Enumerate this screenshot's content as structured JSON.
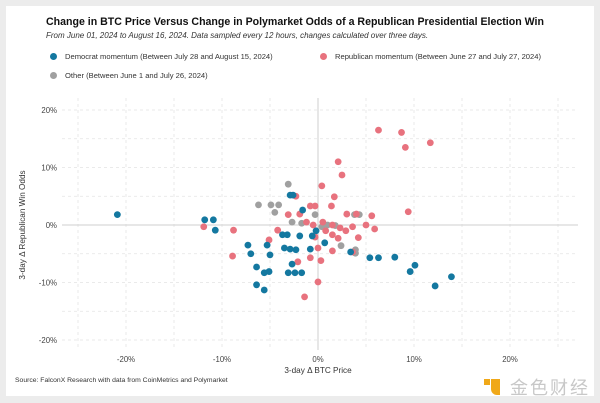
{
  "chart_data": {
    "type": "scatter",
    "title": "Change in BTC Price Versus Change in Polymarket Odds of a Republican Presidential Election Win",
    "subtitle": "From June 01, 2024 to August 16, 2024. Data sampled every 12 hours, changes calculated over three days.",
    "xlabel": "3-day Δ BTC Price",
    "ylabel": "3-day Δ Republican Win Odds",
    "xlim": [
      -28,
      28
    ],
    "ylim": [
      -22,
      22
    ],
    "xticks": [
      -20,
      -10,
      0,
      10,
      20
    ],
    "yticks": [
      -20,
      -10,
      0,
      10,
      20
    ],
    "xtick_labels": [
      "-20%",
      "-10%",
      "0%",
      "10%",
      "20%"
    ],
    "ytick_labels": [
      "-20%",
      "-10%",
      "0%",
      "10%",
      "20%"
    ],
    "grid": true,
    "legend_position": "top",
    "source": "Source: FalconX Research with data from CoinMetrics and Polymarket",
    "series": [
      {
        "name": "Democrat momentum (Between July 28 and August 15, 2024)",
        "color": "#1478a0",
        "points": [
          [
            -20.9,
            1.8
          ],
          [
            -11.8,
            0.9
          ],
          [
            -10.9,
            0.9
          ],
          [
            -10.7,
            -0.9
          ],
          [
            -7.3,
            -3.5
          ],
          [
            -7.0,
            -5.0
          ],
          [
            -5.3,
            -3.5
          ],
          [
            -5.0,
            -5.2
          ],
          [
            -6.4,
            -10.4
          ],
          [
            -5.6,
            -11.3
          ],
          [
            -3.7,
            -1.7
          ],
          [
            -3.2,
            -1.7
          ],
          [
            -3.5,
            -4.0
          ],
          [
            -2.9,
            -4.2
          ],
          [
            -2.3,
            -4.3
          ],
          [
            -6.4,
            -7.3
          ],
          [
            -5.6,
            -8.3
          ],
          [
            -5.1,
            -8.1
          ],
          [
            -2.7,
            -6.8
          ],
          [
            -3.1,
            -8.3
          ],
          [
            -2.4,
            -8.3
          ],
          [
            -1.7,
            -8.3
          ],
          [
            -2.9,
            5.2
          ],
          [
            -2.6,
            5.2
          ],
          [
            -1.6,
            2.6
          ],
          [
            -0.8,
            -4.2
          ],
          [
            -1.9,
            -1.9
          ],
          [
            -0.6,
            -1.9
          ],
          [
            -0.2,
            -1.0
          ],
          [
            0.7,
            -3.1
          ],
          [
            3.4,
            -4.7
          ],
          [
            5.4,
            -5.7
          ],
          [
            6.3,
            -5.7
          ],
          [
            8.0,
            -5.6
          ],
          [
            9.6,
            -8.1
          ],
          [
            10.1,
            -7.0
          ],
          [
            12.2,
            -10.6
          ],
          [
            13.9,
            -9.0
          ]
        ]
      },
      {
        "name": "Republican momentum (Between June 27 and July 27, 2024)",
        "color": "#e8727e",
        "points": [
          [
            -11.9,
            -0.3
          ],
          [
            -8.8,
            -0.9
          ],
          [
            -8.9,
            -5.4
          ],
          [
            -5.1,
            -2.6
          ],
          [
            -4.2,
            -0.9
          ],
          [
            -2.1,
            -6.4
          ],
          [
            -0.8,
            -5.7
          ],
          [
            0.0,
            -4.0
          ],
          [
            -1.4,
            -12.5
          ],
          [
            0.0,
            -9.9
          ],
          [
            2.1,
            11.0
          ],
          [
            2.5,
            8.7
          ],
          [
            0.4,
            6.8
          ],
          [
            1.7,
            4.9
          ],
          [
            1.4,
            3.3
          ],
          [
            -0.3,
            3.3
          ],
          [
            -0.8,
            3.3
          ],
          [
            -2.3,
            5.0
          ],
          [
            -3.1,
            1.8
          ],
          [
            -1.2,
            0.5
          ],
          [
            -0.5,
            0.0
          ],
          [
            0.5,
            0.5
          ],
          [
            1.5,
            0.0
          ],
          [
            2.3,
            -0.5
          ],
          [
            3.0,
            1.9
          ],
          [
            0.8,
            -1.0
          ],
          [
            1.5,
            -1.7
          ],
          [
            2.1,
            -2.3
          ],
          [
            2.9,
            -1.0
          ],
          [
            3.6,
            -0.3
          ],
          [
            4.0,
            1.9
          ],
          [
            5.0,
            0.0
          ],
          [
            5.9,
            -0.7
          ],
          [
            1.5,
            -4.5
          ],
          [
            3.6,
            -4.7
          ],
          [
            0.3,
            -6.2
          ],
          [
            6.3,
            16.5
          ],
          [
            8.7,
            16.1
          ],
          [
            9.1,
            13.5
          ],
          [
            11.7,
            14.3
          ],
          [
            5.6,
            1.6
          ],
          [
            9.4,
            2.3
          ],
          [
            4.2,
            -2.2
          ],
          [
            -0.3,
            -2.1
          ],
          [
            -1.9,
            1.9
          ]
        ]
      },
      {
        "name": "Other (Between June 1 and July 26, 2024)",
        "color": "#a0a0a0",
        "points": [
          [
            -3.1,
            7.1
          ],
          [
            -6.2,
            3.5
          ],
          [
            -4.9,
            3.5
          ],
          [
            -4.1,
            3.5
          ],
          [
            -4.5,
            2.2
          ],
          [
            -1.7,
            0.3
          ],
          [
            -2.7,
            0.5
          ],
          [
            -0.3,
            1.8
          ],
          [
            0.4,
            -0.3
          ],
          [
            1.0,
            0.0
          ],
          [
            3.8,
            1.8
          ],
          [
            4.3,
            1.8
          ],
          [
            2.4,
            -3.6
          ],
          [
            3.9,
            -4.3
          ],
          [
            3.9,
            -4.9
          ],
          [
            1.8,
            -0.1
          ]
        ]
      }
    ]
  },
  "watermark": {
    "text": "金色财经",
    "icon": "jinse-logo-icon"
  }
}
